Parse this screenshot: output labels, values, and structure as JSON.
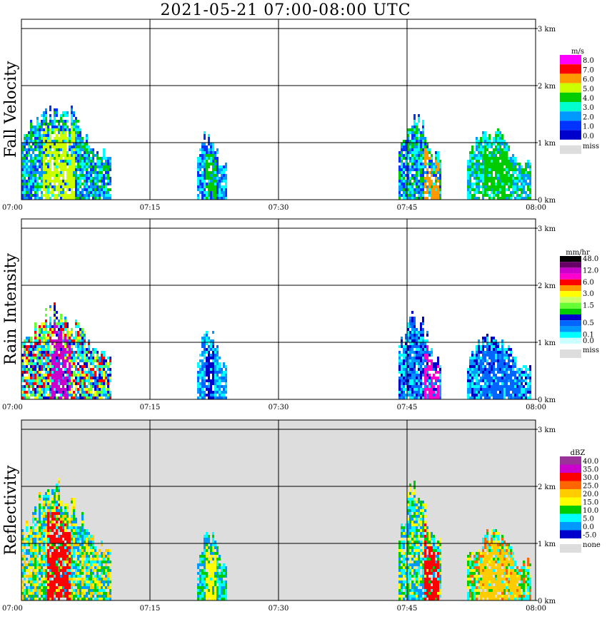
{
  "title": "2021-05-21   07:00-08:00 UTC",
  "chart_data": [
    {
      "type": "heatmap",
      "ylabel": "Fall Velocity",
      "unit": "m/s",
      "background": "#ffffff",
      "x_ticks": [
        "07:00",
        "07:15",
        "07:30",
        "07:45",
        "08:00"
      ],
      "y_ticks": [
        "0 km",
        "1 km",
        "2 km",
        "3 km"
      ],
      "ylim_km": [
        0,
        3
      ],
      "legend": [
        {
          "label": "8.0",
          "color": "#ff00ff"
        },
        {
          "label": "7.0",
          "color": "#ff0000"
        },
        {
          "label": "6.0",
          "color": "#ff9900"
        },
        {
          "label": "5.0",
          "color": "#ccff00"
        },
        {
          "label": "4.0",
          "color": "#00cc00"
        },
        {
          "label": "3.0",
          "color": "#00ffcc"
        },
        {
          "label": "2.0",
          "color": "#0099ff"
        },
        {
          "label": "1.0",
          "color": "#0033ff"
        },
        {
          "label": "0.0",
          "color": "#0000cc"
        }
      ],
      "missing": {
        "label": "miss",
        "color": "#dddddd"
      },
      "echoes": [
        {
          "t0": 0.0,
          "t1": 10.5,
          "top": 1.6,
          "core": [
            2.5,
            6
          ],
          "core_color": "#ccff00",
          "fill": [
            "#00ffff",
            "#0099ff",
            "#0033ff",
            "#00cc00"
          ]
        },
        {
          "t0": 20.5,
          "t1": 23.8,
          "top": 1.2,
          "core": [
            21.5,
            22.5
          ],
          "core_color": "#00cc00",
          "fill": [
            "#0033ff",
            "#0099ff",
            "#00ffff"
          ]
        },
        {
          "t0": 44.0,
          "t1": 49.0,
          "top": 1.4,
          "core": [
            47,
            48.5
          ],
          "core_color": "#ff9900",
          "fill": [
            "#00ffff",
            "#0099ff",
            "#00cc00",
            "#0033ff"
          ]
        },
        {
          "t0": 52.0,
          "t1": 59.5,
          "top": 1.2,
          "core": [
            54,
            57
          ],
          "core_color": "#00cc00",
          "fill": [
            "#00ffff",
            "#0099ff",
            "#00cc00"
          ]
        }
      ]
    },
    {
      "type": "heatmap",
      "ylabel": "Rain Intensity",
      "unit": "mm/hr",
      "background": "#ffffff",
      "x_ticks": [
        "07:00",
        "07:15",
        "07:30",
        "07:45",
        "08:00"
      ],
      "y_ticks": [
        "0 km",
        "1 km",
        "2 km",
        "3 km"
      ],
      "ylim_km": [
        0,
        3
      ],
      "legend": [
        {
          "label": "48.0",
          "color": "#000000"
        },
        {
          "label": "",
          "color": "#660066"
        },
        {
          "label": "12.0",
          "color": "#cc00cc"
        },
        {
          "label": "",
          "color": "#ff00cc"
        },
        {
          "label": "6.0",
          "color": "#ff0000"
        },
        {
          "label": "",
          "color": "#ff9900"
        },
        {
          "label": "3.0",
          "color": "#ffff00"
        },
        {
          "label": "",
          "color": "#ccff66"
        },
        {
          "label": "1.5",
          "color": "#66ff33"
        },
        {
          "label": "",
          "color": "#00cc00"
        },
        {
          "label": "",
          "color": "#0000cc"
        },
        {
          "label": "0.5",
          "color": "#0066ff"
        },
        {
          "label": "",
          "color": "#0099ff"
        },
        {
          "label": "0.1",
          "color": "#00ffff"
        },
        {
          "label": "0.0",
          "color": "#ccffff"
        }
      ],
      "missing": {
        "label": "miss",
        "color": "#dddddd"
      },
      "echoes": [
        {
          "t0": 0.0,
          "t1": 10.5,
          "top": 1.5,
          "core": [
            3.5,
            5.5
          ],
          "core_color": "#cc00cc",
          "fill": [
            "#00ffff",
            "#0099ff",
            "#0000cc",
            "#66ff33",
            "#ffff00",
            "#ff0000"
          ]
        },
        {
          "t0": 20.5,
          "t1": 23.8,
          "top": 1.2,
          "core": [
            21.5,
            22.3
          ],
          "core_color": "#0000cc",
          "fill": [
            "#00ffff",
            "#0099ff",
            "#0066ff"
          ]
        },
        {
          "t0": 44.0,
          "t1": 49.0,
          "top": 1.4,
          "core": [
            47,
            48.5
          ],
          "core_color": "#ff00cc",
          "fill": [
            "#00ffff",
            "#0099ff",
            "#0066ff",
            "#0000cc"
          ]
        },
        {
          "t0": 52.0,
          "t1": 59.5,
          "top": 1.1,
          "core": [
            53.5,
            58
          ],
          "core_color": "#0066ff",
          "fill": [
            "#00ffff",
            "#0099ff",
            "#0000cc"
          ]
        }
      ]
    },
    {
      "type": "heatmap",
      "ylabel": "Reflectivity",
      "unit": "dBZ",
      "background": "#dddddd",
      "x_ticks": [
        "07:00",
        "07:15",
        "07:30",
        "07:45",
        "08:00"
      ],
      "y_ticks": [
        "0 km",
        "1 km",
        "2 km",
        "3 km"
      ],
      "ylim_km": [
        0,
        3
      ],
      "legend": [
        {
          "label": "40.0",
          "color": "#993399"
        },
        {
          "label": "35.0",
          "color": "#cc00cc"
        },
        {
          "label": "30.0",
          "color": "#ff0000"
        },
        {
          "label": "25.0",
          "color": "#ff6600"
        },
        {
          "label": "20.0",
          "color": "#ffcc00"
        },
        {
          "label": "15.0",
          "color": "#ffff00"
        },
        {
          "label": "10.0",
          "color": "#00cc00"
        },
        {
          "label": "5.0",
          "color": "#00ffff"
        },
        {
          "label": "0.0",
          "color": "#0099ff"
        },
        {
          "label": "-5.0",
          "color": "#0000cc"
        }
      ],
      "missing": {
        "label": "none",
        "color": "#dddddd"
      },
      "echoes": [
        {
          "t0": 0.0,
          "t1": 10.5,
          "top": 1.9,
          "core": [
            3.0,
            5.5
          ],
          "core_color": "#ff0000",
          "fill": [
            "#00ffff",
            "#00cc00",
            "#ffff00",
            "#ffcc00",
            "#0099ff"
          ]
        },
        {
          "t0": 20.5,
          "t1": 23.8,
          "top": 1.2,
          "core": [
            21.5,
            22.5
          ],
          "core_color": "#ffff00",
          "fill": [
            "#00ffff",
            "#00cc00",
            "#0099ff"
          ]
        },
        {
          "t0": 44.0,
          "t1": 49.0,
          "top": 1.9,
          "core": [
            47,
            48.5
          ],
          "core_color": "#ff0000",
          "fill": [
            "#00ffff",
            "#00cc00",
            "#ffff00",
            "#0099ff"
          ]
        },
        {
          "t0": 52.0,
          "t1": 59.5,
          "top": 1.2,
          "core": [
            53.5,
            58
          ],
          "core_color": "#ffcc00",
          "fill": [
            "#00ffff",
            "#00cc00",
            "#ffff00",
            "#ff6600"
          ]
        }
      ]
    }
  ]
}
